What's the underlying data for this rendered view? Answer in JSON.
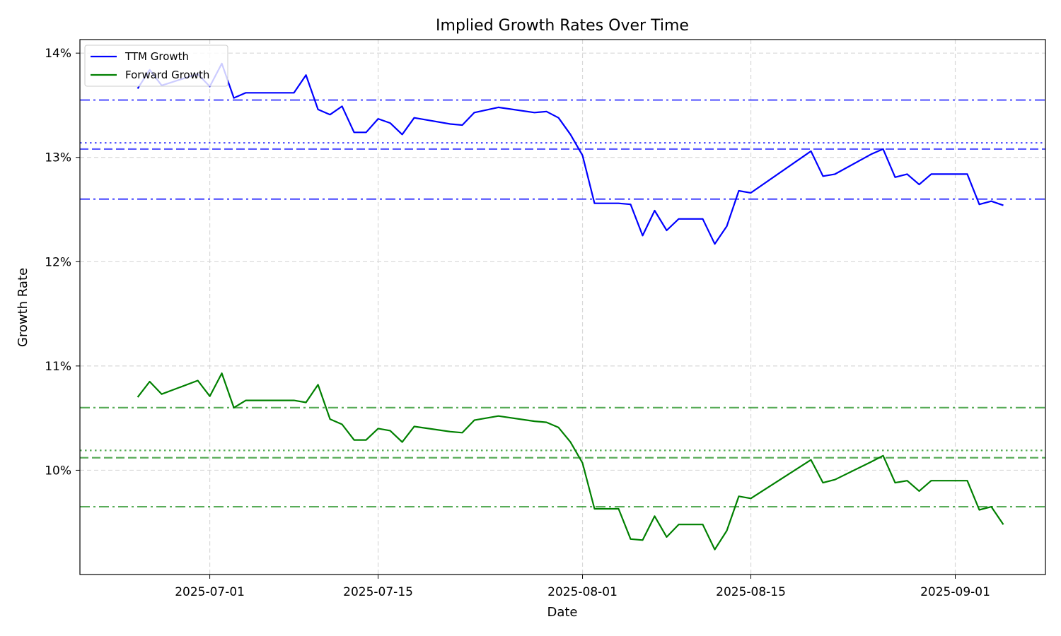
{
  "chart_data": {
    "type": "line",
    "title": "Implied Growth Rates Over Time",
    "xlabel": "Date",
    "ylabel": "Growth Rate",
    "xlim": [
      "2025-06-20",
      "2025-09-08"
    ],
    "ylim": [
      9.0,
      14.13
    ],
    "x_ticks": [
      "2025-07-01",
      "2025-07-15",
      "2025-08-01",
      "2025-08-15",
      "2025-09-01"
    ],
    "y_ticks": [
      10,
      11,
      12,
      13,
      14
    ],
    "y_tick_labels": [
      "10%",
      "11%",
      "12%",
      "13%",
      "14%"
    ],
    "grid": true,
    "legend_position": "top-left",
    "series": [
      {
        "name": "TTM Growth",
        "color": "#0000ff",
        "points": [
          [
            "2025-06-25",
            13.66
          ],
          [
            "2025-06-26",
            13.84
          ],
          [
            "2025-06-27",
            13.69
          ],
          [
            "2025-06-30",
            13.8
          ],
          [
            "2025-07-01",
            13.68
          ],
          [
            "2025-07-02",
            13.9
          ],
          [
            "2025-07-03",
            13.57
          ],
          [
            "2025-07-04",
            13.62
          ],
          [
            "2025-07-08",
            13.62
          ],
          [
            "2025-07-09",
            13.79
          ],
          [
            "2025-07-10",
            13.46
          ],
          [
            "2025-07-11",
            13.41
          ],
          [
            "2025-07-12",
            13.49
          ],
          [
            "2025-07-13",
            13.24
          ],
          [
            "2025-07-14",
            13.24
          ],
          [
            "2025-07-15",
            13.37
          ],
          [
            "2025-07-16",
            13.33
          ],
          [
            "2025-07-17",
            13.22
          ],
          [
            "2025-07-18",
            13.38
          ],
          [
            "2025-07-21",
            13.32
          ],
          [
            "2025-07-22",
            13.31
          ],
          [
            "2025-07-23",
            13.43
          ],
          [
            "2025-07-25",
            13.48
          ],
          [
            "2025-07-28",
            13.43
          ],
          [
            "2025-07-29",
            13.44
          ],
          [
            "2025-07-30",
            13.38
          ],
          [
            "2025-07-31",
            13.22
          ],
          [
            "2025-08-01",
            13.02
          ],
          [
            "2025-08-02",
            12.56
          ],
          [
            "2025-08-04",
            12.56
          ],
          [
            "2025-08-05",
            12.55
          ],
          [
            "2025-08-06",
            12.25
          ],
          [
            "2025-08-07",
            12.49
          ],
          [
            "2025-08-08",
            12.3
          ],
          [
            "2025-08-09",
            12.41
          ],
          [
            "2025-08-11",
            12.41
          ],
          [
            "2025-08-12",
            12.17
          ],
          [
            "2025-08-13",
            12.34
          ],
          [
            "2025-08-14",
            12.68
          ],
          [
            "2025-08-15",
            12.66
          ],
          [
            "2025-08-20",
            13.06
          ],
          [
            "2025-08-21",
            12.82
          ],
          [
            "2025-08-22",
            12.84
          ],
          [
            "2025-08-25",
            13.03
          ],
          [
            "2025-08-26",
            13.08
          ],
          [
            "2025-08-27",
            12.81
          ],
          [
            "2025-08-28",
            12.84
          ],
          [
            "2025-08-29",
            12.74
          ],
          [
            "2025-08-30",
            12.84
          ],
          [
            "2025-09-02",
            12.84
          ],
          [
            "2025-09-03",
            12.55
          ],
          [
            "2025-09-04",
            12.58
          ],
          [
            "2025-09-05",
            12.54
          ]
        ],
        "reference_lines": {
          "dashdot": [
            13.55,
            12.6
          ],
          "dashed": [
            13.08
          ],
          "dotted": [
            13.14
          ]
        }
      },
      {
        "name": "Forward Growth",
        "color": "#008000",
        "points": [
          [
            "2025-06-25",
            10.7
          ],
          [
            "2025-06-26",
            10.85
          ],
          [
            "2025-06-27",
            10.73
          ],
          [
            "2025-06-30",
            10.86
          ],
          [
            "2025-07-01",
            10.71
          ],
          [
            "2025-07-02",
            10.93
          ],
          [
            "2025-07-03",
            10.6
          ],
          [
            "2025-07-04",
            10.67
          ],
          [
            "2025-07-08",
            10.67
          ],
          [
            "2025-07-09",
            10.65
          ],
          [
            "2025-07-10",
            10.82
          ],
          [
            "2025-07-11",
            10.49
          ],
          [
            "2025-07-12",
            10.44
          ],
          [
            "2025-07-13",
            10.29
          ],
          [
            "2025-07-14",
            10.29
          ],
          [
            "2025-07-15",
            10.4
          ],
          [
            "2025-07-16",
            10.38
          ],
          [
            "2025-07-17",
            10.27
          ],
          [
            "2025-07-18",
            10.42
          ],
          [
            "2025-07-21",
            10.37
          ],
          [
            "2025-07-22",
            10.36
          ],
          [
            "2025-07-23",
            10.48
          ],
          [
            "2025-07-25",
            10.52
          ],
          [
            "2025-07-28",
            10.47
          ],
          [
            "2025-07-29",
            10.46
          ],
          [
            "2025-07-30",
            10.41
          ],
          [
            "2025-07-31",
            10.27
          ],
          [
            "2025-08-01",
            10.07
          ],
          [
            "2025-08-02",
            9.63
          ],
          [
            "2025-08-04",
            9.63
          ],
          [
            "2025-08-05",
            9.34
          ],
          [
            "2025-08-06",
            9.33
          ],
          [
            "2025-08-07",
            9.56
          ],
          [
            "2025-08-08",
            9.36
          ],
          [
            "2025-08-09",
            9.48
          ],
          [
            "2025-08-11",
            9.48
          ],
          [
            "2025-08-12",
            9.24
          ],
          [
            "2025-08-13",
            9.42
          ],
          [
            "2025-08-14",
            9.75
          ],
          [
            "2025-08-15",
            9.73
          ],
          [
            "2025-08-20",
            10.1
          ],
          [
            "2025-08-21",
            9.88
          ],
          [
            "2025-08-22",
            9.91
          ],
          [
            "2025-08-25",
            10.08
          ],
          [
            "2025-08-26",
            10.14
          ],
          [
            "2025-08-27",
            9.88
          ],
          [
            "2025-08-28",
            9.9
          ],
          [
            "2025-08-29",
            9.8
          ],
          [
            "2025-08-30",
            9.9
          ],
          [
            "2025-09-02",
            9.9
          ],
          [
            "2025-09-03",
            9.62
          ],
          [
            "2025-09-04",
            9.65
          ],
          [
            "2025-09-05",
            9.48
          ]
        ],
        "reference_lines": {
          "dashdot": [
            10.6,
            9.65
          ],
          "dashed": [
            10.12
          ],
          "dotted": [
            10.19
          ]
        }
      }
    ]
  }
}
